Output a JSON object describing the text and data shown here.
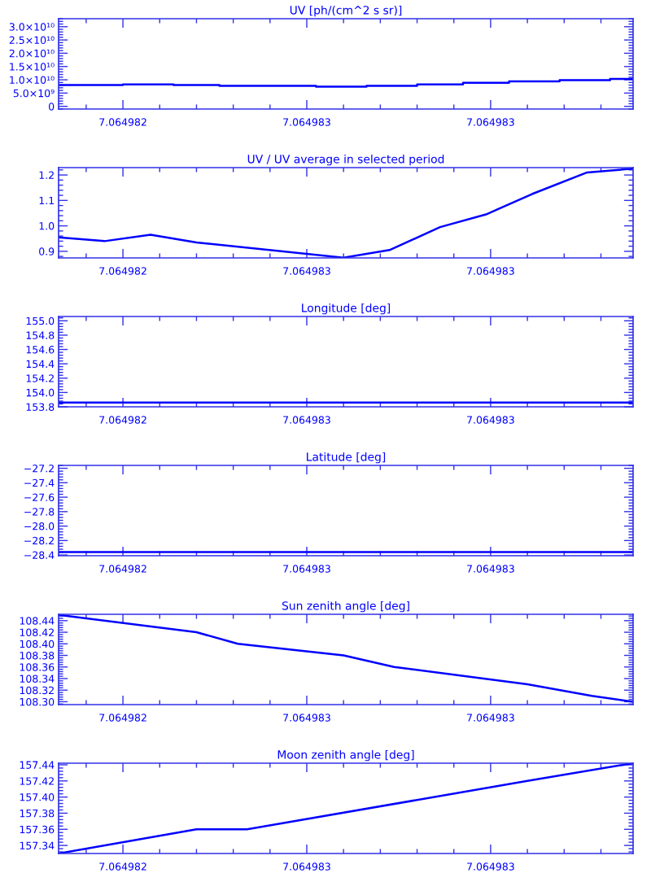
{
  "chart_data": [
    {
      "type": "step",
      "title": "UV [ph/(cm^2 s sr)]",
      "xlim": [
        7.06498226,
        7.06498351
      ],
      "xticks": [
        {
          "value": 7.0649824,
          "label": "7.064982"
        },
        {
          "value": 7.0649828,
          "label": "7.064983"
        },
        {
          "value": 7.0649832,
          "label": "7.064983"
        }
      ],
      "ylim": [
        -1000000000.0,
        33000000000.0
      ],
      "yticks": [
        0,
        {
          "value": 5000000000.0,
          "label": "5.0×10⁹"
        },
        {
          "value": 10000000000.0,
          "label": "1.0×10¹⁰"
        },
        {
          "value": 15000000000.0,
          "label": "1.5×10¹⁰"
        },
        {
          "value": 20000000000.0,
          "label": "2.0×10¹⁰"
        },
        {
          "value": 25000000000.0,
          "label": "2.5×10¹⁰"
        },
        {
          "value": 30000000000.0,
          "label": "3.0×10¹⁰"
        }
      ],
      "series": [
        {
          "color": "#0000ff",
          "x": [
            7.06498226,
            7.0649824,
            7.06498251,
            7.06498261,
            7.06498282,
            7.06498293,
            7.06498304,
            7.06498314,
            7.06498324,
            7.06498335,
            7.06498346,
            7.06498351
          ],
          "values": [
            8000000000.0,
            8300000000.0,
            8000000000.0,
            7700000000.0,
            7400000000.0,
            7700000000.0,
            8300000000.0,
            8900000000.0,
            9400000000.0,
            9900000000.0,
            10300000000.0,
            10300000000.0
          ]
        }
      ]
    },
    {
      "type": "line",
      "title": "UV / UV average in selected period",
      "xlim": [
        7.06498226,
        7.06498351
      ],
      "xticks": [
        {
          "value": 7.0649824,
          "label": "7.064982"
        },
        {
          "value": 7.0649828,
          "label": "7.064983"
        },
        {
          "value": 7.0649832,
          "label": "7.064983"
        }
      ],
      "ylim": [
        0.874,
        1.229
      ],
      "yticks": [
        {
          "value": 0.9,
          "label": "0.9"
        },
        {
          "value": 1.0,
          "label": "1.0"
        },
        {
          "value": 1.1,
          "label": "1.1"
        },
        {
          "value": 1.2,
          "label": "1.2"
        }
      ],
      "series": [
        {
          "color": "#0000ff",
          "x": [
            7.06498226,
            7.06498236,
            7.06498246,
            7.06498256,
            7.06498288,
            7.06498298,
            7.06498309,
            7.06498319,
            7.06498329,
            7.06498341,
            7.06498351
          ],
          "values": [
            0.955,
            0.94,
            0.965,
            0.935,
            0.875,
            0.905,
            0.995,
            1.045,
            1.125,
            1.21,
            1.225
          ]
        }
      ]
    },
    {
      "type": "line",
      "title": "Longitude [deg]",
      "xlim": [
        7.06498226,
        7.06498351
      ],
      "xticks": [
        {
          "value": 7.0649824,
          "label": "7.064982"
        },
        {
          "value": 7.0649828,
          "label": "7.064983"
        },
        {
          "value": 7.0649832,
          "label": "7.064983"
        }
      ],
      "ylim": [
        153.8,
        155.06
      ],
      "yticks": [
        {
          "value": 153.8,
          "label": "153.8"
        },
        {
          "value": 154.0,
          "label": "154.0"
        },
        {
          "value": 154.2,
          "label": "154.2"
        },
        {
          "value": 154.4,
          "label": "154.4"
        },
        {
          "value": 154.6,
          "label": "154.6"
        },
        {
          "value": 154.8,
          "label": "154.8"
        },
        {
          "value": 155.0,
          "label": "155.0"
        }
      ],
      "series": [
        {
          "color": "#0000ff",
          "x": [
            7.06498226,
            7.06498351
          ],
          "values": [
            153.86,
            153.86
          ]
        }
      ]
    },
    {
      "type": "line",
      "title": "Latitude [deg]",
      "xlim": [
        7.06498226,
        7.06498351
      ],
      "xticks": [
        {
          "value": 7.0649824,
          "label": "7.064982"
        },
        {
          "value": 7.0649828,
          "label": "7.064983"
        },
        {
          "value": 7.0649832,
          "label": "7.064983"
        }
      ],
      "ylim": [
        -28.41,
        -27.16
      ],
      "yticks": [
        {
          "value": -28.4,
          "label": "−28.4"
        },
        {
          "value": -28.2,
          "label": "−28.2"
        },
        {
          "value": -28.0,
          "label": "−28.0"
        },
        {
          "value": -27.8,
          "label": "−27.8"
        },
        {
          "value": -27.6,
          "label": "−27.6"
        },
        {
          "value": -27.4,
          "label": "−27.4"
        },
        {
          "value": -27.2,
          "label": "−27.2"
        }
      ],
      "series": [
        {
          "color": "#0000ff",
          "x": [
            7.06498226,
            7.06498351
          ],
          "values": [
            -28.36,
            -28.36
          ]
        }
      ]
    },
    {
      "type": "line",
      "title": "Sun zenith angle [deg]",
      "xlim": [
        7.06498226,
        7.06498351
      ],
      "xticks": [
        {
          "value": 7.0649824,
          "label": "7.064982"
        },
        {
          "value": 7.0649828,
          "label": "7.064983"
        },
        {
          "value": 7.0649832,
          "label": "7.064983"
        }
      ],
      "ylim": [
        108.295,
        108.451
      ],
      "yticks": [
        {
          "value": 108.3,
          "label": "108.30"
        },
        {
          "value": 108.32,
          "label": "108.32"
        },
        {
          "value": 108.34,
          "label": "108.34"
        },
        {
          "value": 108.36,
          "label": "108.36"
        },
        {
          "value": 108.38,
          "label": "108.38"
        },
        {
          "value": 108.4,
          "label": "108.40"
        },
        {
          "value": 108.42,
          "label": "108.42"
        },
        {
          "value": 108.44,
          "label": "108.44"
        }
      ],
      "series": [
        {
          "color": "#0000ff",
          "x": [
            7.06498226,
            7.06498256,
            7.06498265,
            7.06498288,
            7.06498299,
            7.06498328,
            7.06498342,
            7.06498351
          ],
          "values": [
            108.45,
            108.42,
            108.4,
            108.38,
            108.36,
            108.33,
            108.31,
            108.3
          ]
        }
      ]
    },
    {
      "type": "line",
      "title": "Moon zenith angle [deg]",
      "xlim": [
        7.06498226,
        7.06498351
      ],
      "xticks": [
        {
          "value": 7.0649824,
          "label": "7.064982"
        },
        {
          "value": 7.0649828,
          "label": "7.064983"
        },
        {
          "value": 7.0649832,
          "label": "7.064983"
        }
      ],
      "ylim": [
        157.33,
        157.442
      ],
      "yticks": [
        {
          "value": 157.34,
          "label": "157.34"
        },
        {
          "value": 157.36,
          "label": "157.36"
        },
        {
          "value": 157.38,
          "label": "157.38"
        },
        {
          "value": 157.4,
          "label": "157.40"
        },
        {
          "value": 157.42,
          "label": "157.42"
        },
        {
          "value": 157.44,
          "label": "157.44"
        }
      ],
      "series": [
        {
          "color": "#0000ff",
          "x": [
            7.06498226,
            7.06498256,
            7.06498267,
            7.06498328,
            7.06498351
          ],
          "values": [
            157.33,
            157.36,
            157.36,
            157.42,
            157.442
          ]
        }
      ]
    }
  ]
}
